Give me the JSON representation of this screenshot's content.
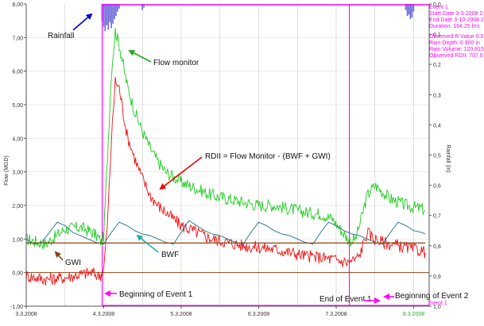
{
  "chart_data": {
    "type": "line",
    "y_axis": {
      "label": "Flow (MGD)",
      "range": [
        -1.0,
        8.0
      ],
      "ticks": [
        "-1,00",
        "0,00",
        "1,00",
        "2,00",
        "3,00",
        "4,00",
        "5,00",
        "6,00",
        "7,00",
        "8,00"
      ]
    },
    "y2_axis": {
      "label": "Rainfall (in)",
      "range": [
        0.0,
        1.0
      ],
      "inverted": true,
      "ticks": [
        "0,0",
        "0,1",
        "0,2",
        "0,3",
        "0,4",
        "0,5",
        "0,6",
        "0,7",
        "0,8",
        "0,9",
        "1,0"
      ]
    },
    "x_axis": {
      "range_days": [
        0,
        5.2
      ],
      "ticks": [
        {
          "label": "3.3.2008",
          "x": 0,
          "highlight": false
        },
        {
          "label": "4.3.2008",
          "x": 1,
          "highlight": false
        },
        {
          "label": "5.3.2008",
          "x": 2,
          "highlight": false
        },
        {
          "label": "6.3.2008",
          "x": 3,
          "highlight": false
        },
        {
          "label": "7.3.2008",
          "x": 4,
          "highlight": false
        },
        {
          "label": "8.3.2008",
          "x": 5,
          "highlight": true
        }
      ]
    },
    "grid": true,
    "series": [
      {
        "key": "flow",
        "color": "#22cc22",
        "x": [
          0,
          0.25,
          0.5,
          0.7,
          0.85,
          0.93,
          0.97,
          1.0,
          1.05,
          1.1,
          1.15,
          1.2,
          1.25,
          1.3,
          1.4,
          1.5,
          1.6,
          1.7,
          1.8,
          2.0,
          2.2,
          2.4,
          2.6,
          2.8,
          3.0,
          3.2,
          3.4,
          3.6,
          3.8,
          3.95,
          4.05,
          4.15,
          4.2,
          4.25,
          4.3,
          4.4,
          4.5,
          4.6,
          4.7,
          4.8,
          4.9,
          5.0,
          5.1,
          5.15
        ],
        "y": [
          1.0,
          0.85,
          1.3,
          1.35,
          1.2,
          1.05,
          0.9,
          1.1,
          3.5,
          6.0,
          7.2,
          6.8,
          6.2,
          5.6,
          4.8,
          4.2,
          3.7,
          3.3,
          3.0,
          2.7,
          2.5,
          2.3,
          2.2,
          2.1,
          2.0,
          2.0,
          1.9,
          1.8,
          1.75,
          1.6,
          1.3,
          1.0,
          0.95,
          1.0,
          1.4,
          2.3,
          2.6,
          2.4,
          2.2,
          2.1,
          2.0,
          1.95,
          1.9,
          1.85
        ]
      },
      {
        "key": "rdii",
        "color": "#ee1111",
        "x": [
          0,
          0.25,
          0.5,
          0.7,
          0.85,
          0.93,
          0.97,
          1.0,
          1.05,
          1.1,
          1.15,
          1.2,
          1.25,
          1.3,
          1.4,
          1.5,
          1.6,
          1.7,
          1.8,
          2.0,
          2.2,
          2.4,
          2.6,
          2.8,
          3.0,
          3.2,
          3.4,
          3.6,
          3.8,
          3.95,
          4.05,
          4.15,
          4.2,
          4.25,
          4.3,
          4.4,
          4.5,
          4.6,
          4.7,
          4.8,
          4.9,
          5.0,
          5.1,
          5.15
        ],
        "y": [
          -0.1,
          -0.2,
          -0.15,
          -0.05,
          0.0,
          -0.1,
          -0.05,
          0.1,
          1.5,
          4.0,
          5.7,
          5.5,
          4.8,
          4.1,
          3.4,
          2.8,
          2.3,
          2.0,
          1.8,
          1.4,
          1.2,
          1.0,
          0.9,
          0.8,
          0.75,
          0.7,
          0.6,
          0.5,
          0.45,
          0.4,
          0.35,
          0.3,
          0.35,
          0.4,
          0.5,
          1.2,
          1.0,
          0.9,
          0.85,
          0.8,
          0.75,
          0.7,
          0.65,
          0.6
        ]
      },
      {
        "key": "bwf",
        "color": "#1f6f8b",
        "x": [
          0,
          0.1,
          0.2,
          0.3,
          0.4,
          0.5,
          0.6,
          0.7,
          0.8,
          0.9,
          1.0,
          1.1,
          1.2,
          1.3,
          1.4,
          1.5,
          1.6,
          1.7,
          1.8,
          1.9,
          2.0,
          2.1,
          2.2,
          2.3,
          2.4,
          2.5,
          2.6,
          2.7,
          2.8,
          2.9,
          3.0,
          3.1,
          3.2,
          3.3,
          3.4,
          3.5,
          3.6,
          3.7,
          3.8,
          3.9,
          4.0,
          4.1,
          4.2,
          4.3,
          4.4,
          4.5,
          4.6,
          4.7,
          4.8,
          4.9,
          5.0,
          5.1,
          5.15
        ],
        "y": [
          1.0,
          0.85,
          0.9,
          1.2,
          1.5,
          1.4,
          1.2,
          1.1,
          1.0,
          0.9,
          0.85,
          1.2,
          1.5,
          1.4,
          1.25,
          1.15,
          1.1,
          1.0,
          0.9,
          0.85,
          1.2,
          1.55,
          1.4,
          1.25,
          1.15,
          1.1,
          1.0,
          0.9,
          0.85,
          1.2,
          1.5,
          1.4,
          1.25,
          1.15,
          1.1,
          1.0,
          0.9,
          0.85,
          1.2,
          1.5,
          1.4,
          1.25,
          1.15,
          1.1,
          1.0,
          0.9,
          0.85,
          1.2,
          1.5,
          1.4,
          1.25,
          1.2,
          1.15
        ]
      },
      {
        "key": "gwi",
        "color": "#8b4513",
        "x": [
          0,
          5.15
        ],
        "y": [
          0.88,
          0.88
        ]
      }
    ],
    "zero_line": {
      "y": 0.0,
      "color": "#8b4513"
    },
    "rainfall_bars": [
      {
        "x": 0.98,
        "depth": 0.055
      },
      {
        "x": 1.0,
        "depth": 0.075
      },
      {
        "x": 1.02,
        "depth": 0.09
      },
      {
        "x": 1.04,
        "depth": 0.07
      },
      {
        "x": 1.06,
        "depth": 0.085
      },
      {
        "x": 1.08,
        "depth": 0.06
      },
      {
        "x": 1.1,
        "depth": 0.08
      },
      {
        "x": 1.12,
        "depth": 0.065
      },
      {
        "x": 1.14,
        "depth": 0.05
      },
      {
        "x": 1.16,
        "depth": 0.04
      },
      {
        "x": 1.18,
        "depth": 0.025
      },
      {
        "x": 1.2,
        "depth": 0.015
      },
      {
        "x": 1.5,
        "depth": 0.02
      },
      {
        "x": 1.52,
        "depth": 0.012
      },
      {
        "x": 4.9,
        "depth": 0.02
      },
      {
        "x": 4.92,
        "depth": 0.04
      },
      {
        "x": 4.94,
        "depth": 0.035
      },
      {
        "x": 4.96,
        "depth": 0.05
      },
      {
        "x": 4.98,
        "depth": 0.045
      },
      {
        "x": 5.0,
        "depth": 0.025
      }
    ],
    "events": [
      {
        "start": 0.98,
        "end": 4.17
      },
      {
        "start": 4.17,
        "end": 5.2
      }
    ],
    "rainfall_color": "#6a6ad9",
    "event_color": "#ff00ff",
    "annotations": [
      {
        "text": "Rainfall",
        "color": "#0000cc"
      },
      {
        "text": "Flow monitor",
        "color": "#00aa00"
      },
      {
        "text": "RDII = Flow Monitor - (BWF + GWI)",
        "color": "#ee0000"
      },
      {
        "text": "GWI",
        "color": "#8b4513"
      },
      {
        "text": "BWF",
        "color": "#20b2aa"
      },
      {
        "text": "Beginning of Event 1",
        "color": "#ff00ff"
      },
      {
        "text": "End of Event 1",
        "color": "#ff00ff"
      },
      {
        "text": "Beginning of Event 2",
        "color": "#ff00ff"
      },
      {
        "text": "Event 1",
        "color": "#ff00ff"
      }
    ]
  },
  "event_panel": {
    "lines": [
      "Event 1",
      "Start Date 3-3-2008 2:",
      "End Date 3-10-2008 2",
      "Duration: 164.25 hrs"
    ],
    "lines2": [
      "Observed R Value 0.0",
      "Rain Depth: 0.900 in",
      "Rain Volume: 120.815",
      "Observed RDII: 707.0"
    ]
  }
}
